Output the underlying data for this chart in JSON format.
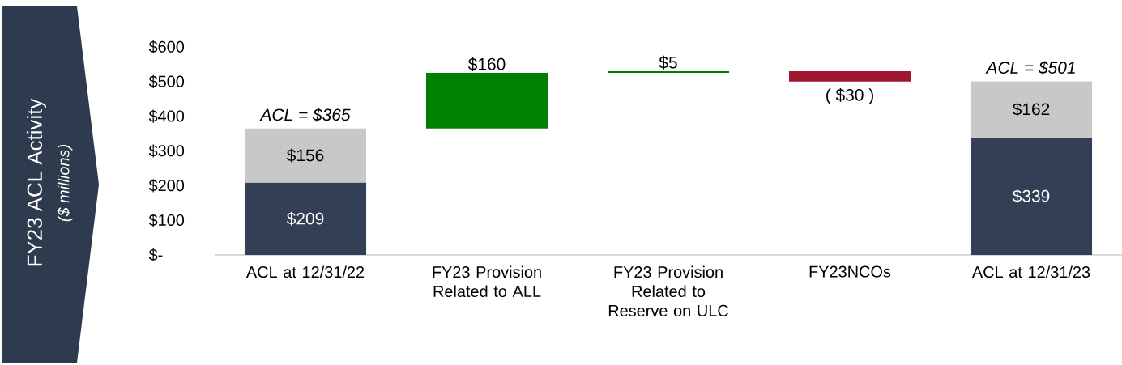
{
  "chart_data": {
    "type": "bar",
    "stacked": true,
    "ylabel": "FY23 ACL Activity",
    "annotations": [
      "($ millions)"
    ],
    "categories": [
      "ACL at 12/31/22",
      "FY23 Provision Related to ALL",
      "FY23 Provision Related to Reserve on ULC",
      "FY23NCOs",
      "ACL at 12/31/23"
    ],
    "series": [
      {
        "color": "#333f55",
        "values": [
          209,
          null,
          null,
          null,
          339
        ],
        "value_labels": [
          "$209",
          null,
          null,
          null,
          "$339"
        ]
      },
      {
        "color": "#c8c8c8",
        "values": [
          156,
          null,
          null,
          null,
          162
        ],
        "value_labels": [
          "$156",
          null,
          null,
          null,
          "$162"
        ]
      },
      {
        "colors": [
          null,
          "#008000",
          "#008000",
          "#a0172f",
          null
        ],
        "values": [
          null,
          160,
          5,
          -30,
          null
        ],
        "base": [
          null,
          365,
          525,
          530,
          null
        ],
        "value_labels": [
          null,
          "$160",
          "$5",
          "( $30 )",
          null
        ]
      }
    ],
    "totals": [
      "ACL = $365",
      null,
      null,
      null,
      "ACL = $501"
    ],
    "ylim": [
      0,
      600
    ],
    "yticks": [
      {
        "value": 0,
        "label": "$-"
      },
      {
        "value": 100,
        "label": "$100"
      },
      {
        "value": 200,
        "label": "$200"
      },
      {
        "value": 300,
        "label": "$300"
      },
      {
        "value": 400,
        "label": "$400"
      },
      {
        "value": 500,
        "label": "$500"
      },
      {
        "value": 600,
        "label": "$600"
      }
    ]
  }
}
